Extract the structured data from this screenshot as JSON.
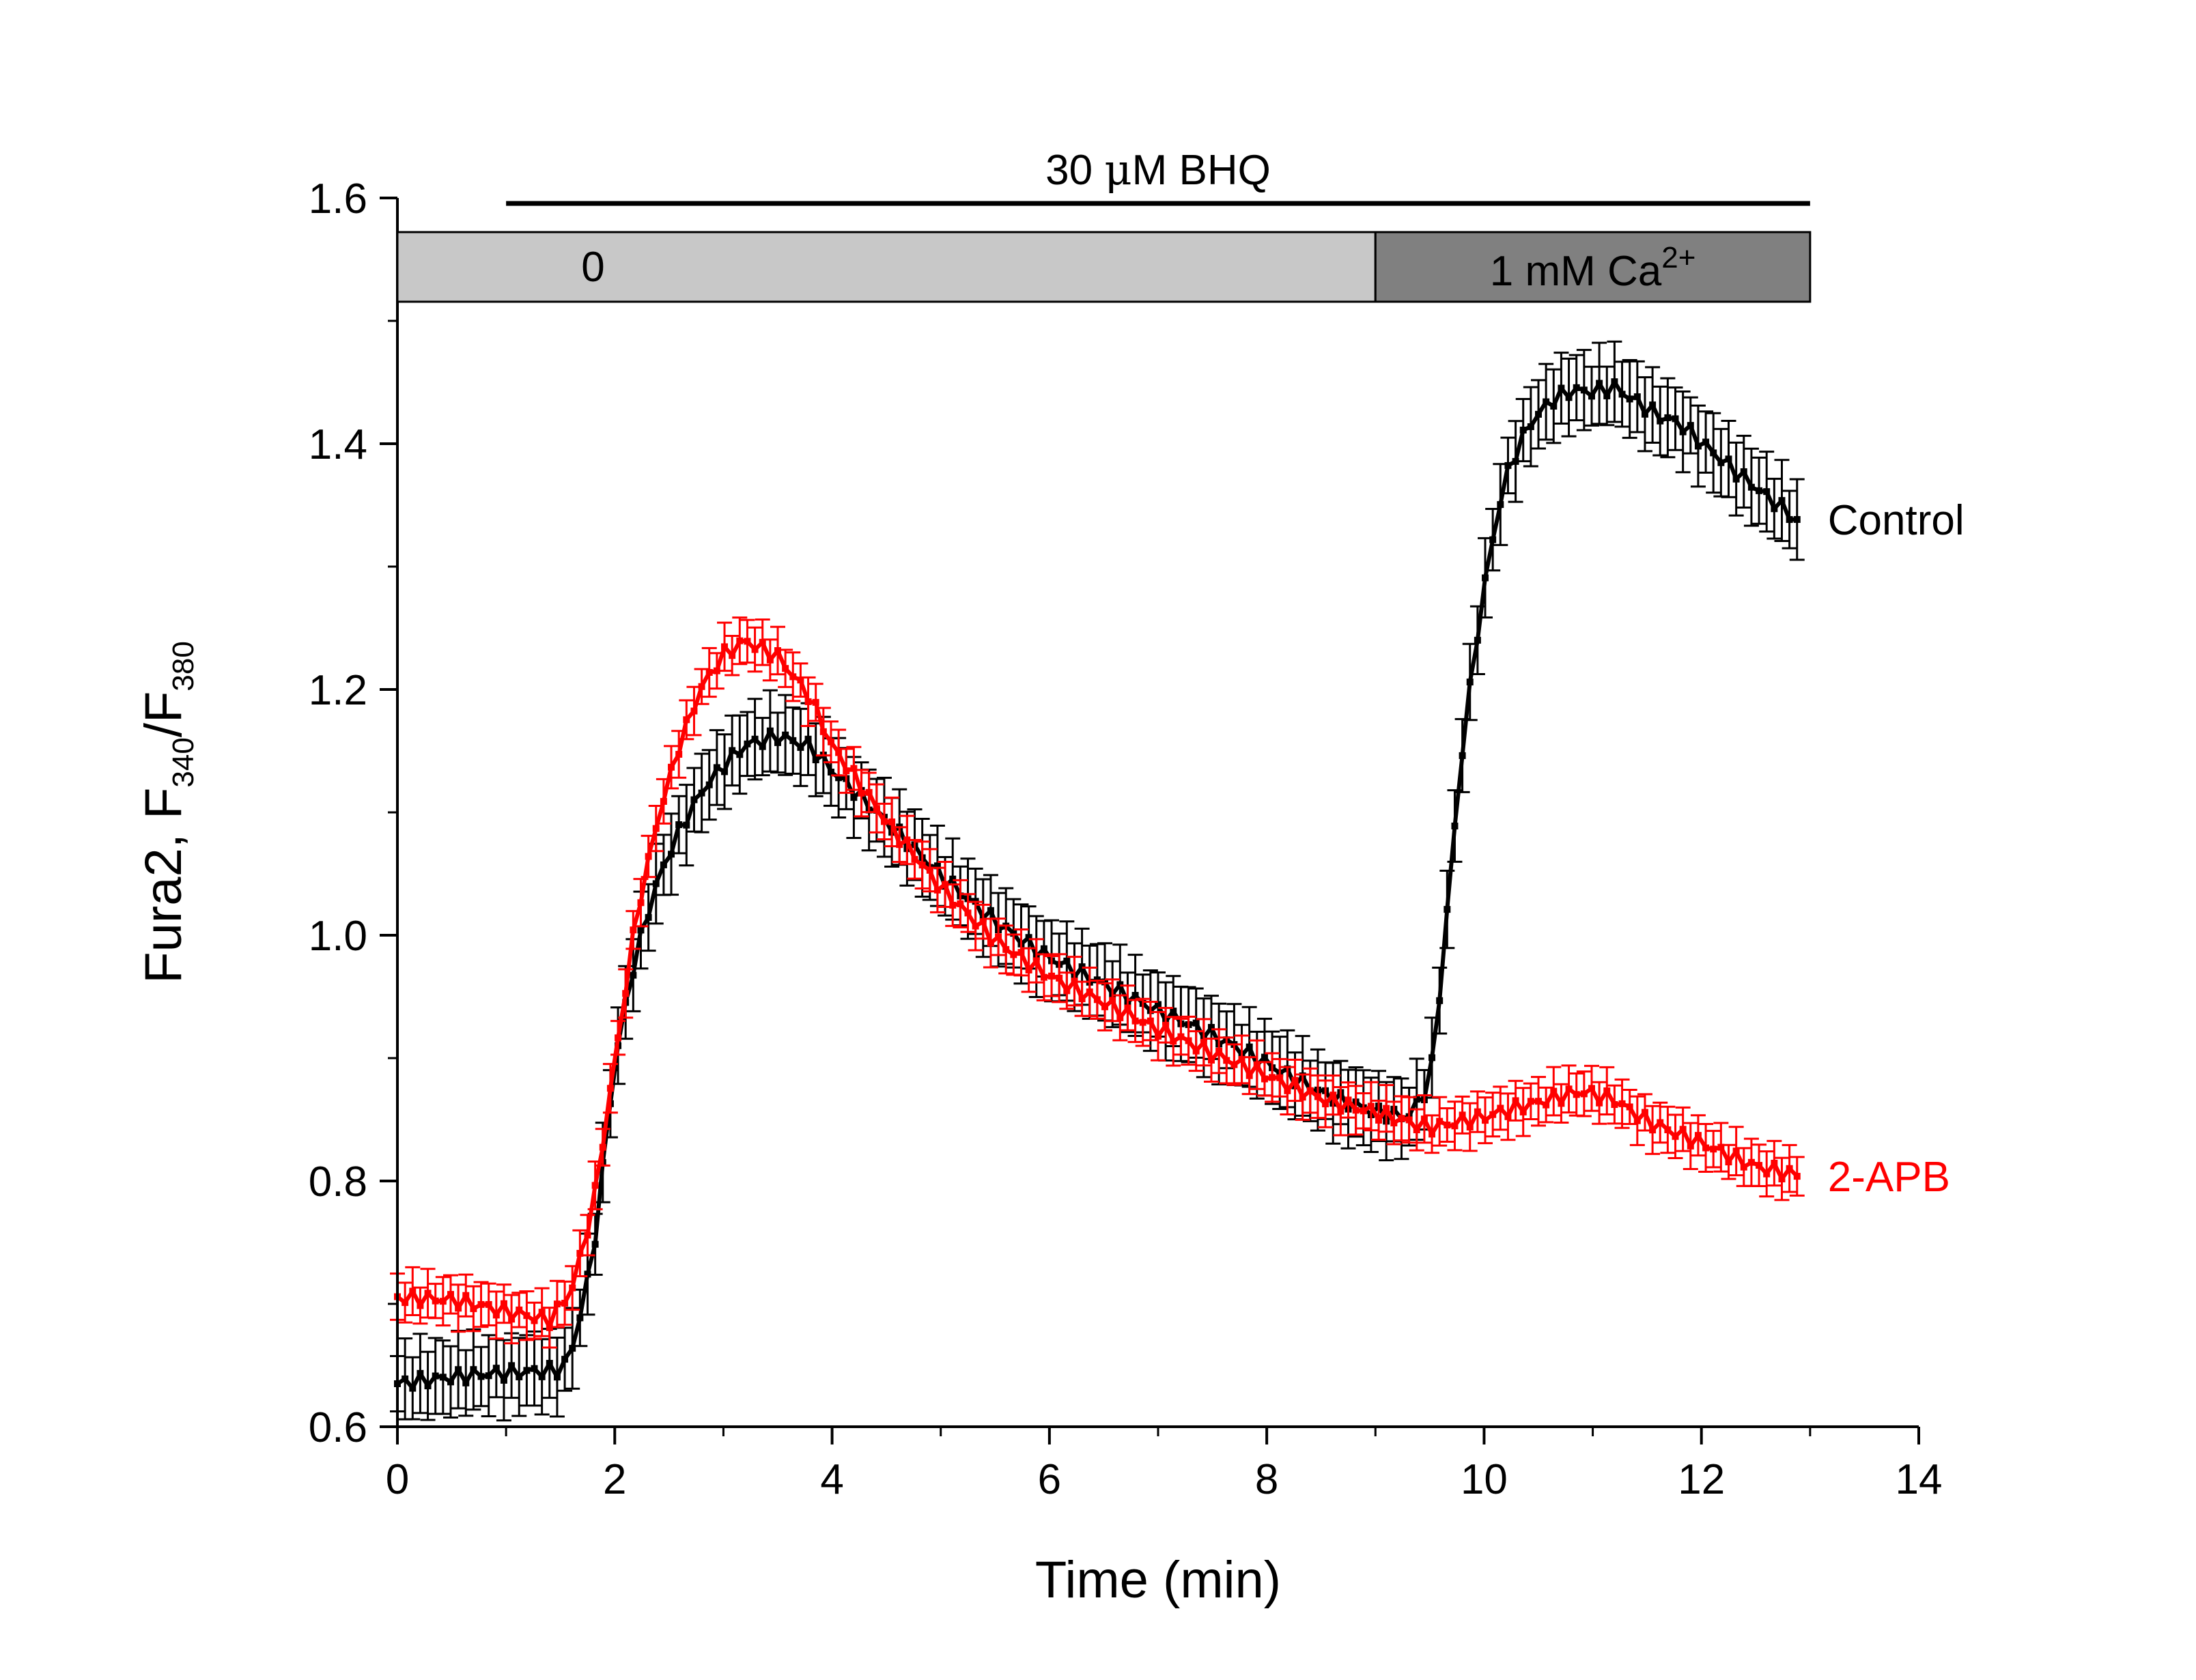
{
  "chart_data": {
    "type": "line",
    "xlabel": "Time (min)",
    "ylabel": {
      "main": "Fura2, F",
      "sub1": "340",
      "mid": "/F",
      "sub2": "380"
    },
    "xlim": [
      0,
      14
    ],
    "ylim": [
      0.6,
      1.6
    ],
    "x_ticks": [
      "0",
      "2",
      "4",
      "6",
      "8",
      "10",
      "12",
      "14"
    ],
    "y_ticks": [
      "0.6",
      "0.8",
      "1.0",
      "1.2",
      "1.4",
      "1.6"
    ],
    "annotations": {
      "bhq_label": {
        "pre": "30 ",
        "mu": "μ",
        "post": "M BHQ"
      },
      "bhq_range": [
        1,
        13
      ],
      "bar_zero": {
        "label": "0",
        "range": [
          0,
          9
        ],
        "color": "#c8c8c8"
      },
      "bar_ca": {
        "label": "1 mM Ca",
        "sup": "2+",
        "range": [
          9,
          13
        ],
        "color": "#808080"
      }
    },
    "series": [
      {
        "name": "Control",
        "color": "#000000",
        "points": [
          [
            0,
            0.635
          ],
          [
            0.5,
            0.637
          ],
          [
            1.0,
            0.64
          ],
          [
            1.5,
            0.645
          ],
          [
            1.6,
            0.66
          ],
          [
            1.8,
            0.74
          ],
          [
            2.0,
            0.9
          ],
          [
            2.2,
            0.99
          ],
          [
            2.4,
            1.05
          ],
          [
            2.6,
            1.09
          ],
          [
            2.8,
            1.12
          ],
          [
            3.0,
            1.14
          ],
          [
            3.2,
            1.155
          ],
          [
            3.5,
            1.16
          ],
          [
            3.8,
            1.15
          ],
          [
            4.0,
            1.13
          ],
          [
            4.5,
            1.09
          ],
          [
            5.0,
            1.05
          ],
          [
            5.5,
            1.015
          ],
          [
            6.0,
            0.985
          ],
          [
            6.5,
            0.96
          ],
          [
            7.0,
            0.935
          ],
          [
            7.5,
            0.915
          ],
          [
            8.0,
            0.895
          ],
          [
            8.5,
            0.875
          ],
          [
            9.0,
            0.86
          ],
          [
            9.3,
            0.855
          ],
          [
            9.5,
            0.88
          ],
          [
            9.6,
            0.96
          ],
          [
            9.7,
            1.06
          ],
          [
            9.8,
            1.15
          ],
          [
            9.9,
            1.22
          ],
          [
            10.0,
            1.28
          ],
          [
            10.1,
            1.33
          ],
          [
            10.2,
            1.37
          ],
          [
            10.4,
            1.41
          ],
          [
            10.6,
            1.43
          ],
          [
            10.8,
            1.44
          ],
          [
            11.0,
            1.44
          ],
          [
            11.2,
            1.445
          ],
          [
            11.4,
            1.435
          ],
          [
            11.6,
            1.425
          ],
          [
            11.8,
            1.42
          ],
          [
            12.0,
            1.405
          ],
          [
            12.2,
            1.39
          ],
          [
            12.4,
            1.375
          ],
          [
            12.6,
            1.36
          ],
          [
            12.8,
            1.345
          ],
          [
            12.9,
            1.335
          ]
        ],
        "error": 0.03
      },
      {
        "name": "2-APB",
        "color": "#ff0000",
        "points": [
          [
            0,
            0.705
          ],
          [
            0.5,
            0.7
          ],
          [
            1.0,
            0.69
          ],
          [
            1.4,
            0.685
          ],
          [
            1.6,
            0.71
          ],
          [
            1.8,
            0.78
          ],
          [
            2.0,
            0.9
          ],
          [
            2.2,
            1.02
          ],
          [
            2.4,
            1.1
          ],
          [
            2.6,
            1.16
          ],
          [
            2.8,
            1.205
          ],
          [
            3.0,
            1.23
          ],
          [
            3.2,
            1.24
          ],
          [
            3.5,
            1.225
          ],
          [
            3.8,
            1.19
          ],
          [
            4.0,
            1.15
          ],
          [
            4.5,
            1.09
          ],
          [
            5.0,
            1.04
          ],
          [
            5.5,
            1.0
          ],
          [
            6.0,
            0.97
          ],
          [
            6.5,
            0.945
          ],
          [
            7.0,
            0.92
          ],
          [
            7.5,
            0.9
          ],
          [
            8.0,
            0.885
          ],
          [
            8.5,
            0.87
          ],
          [
            9.0,
            0.86
          ],
          [
            9.5,
            0.845
          ],
          [
            10.0,
            0.85
          ],
          [
            10.5,
            0.86
          ],
          [
            10.9,
            0.87
          ],
          [
            11.2,
            0.865
          ],
          [
            11.5,
            0.85
          ],
          [
            12.0,
            0.835
          ],
          [
            12.5,
            0.815
          ],
          [
            12.9,
            0.805
          ]
        ],
        "error": 0.018
      }
    ]
  }
}
